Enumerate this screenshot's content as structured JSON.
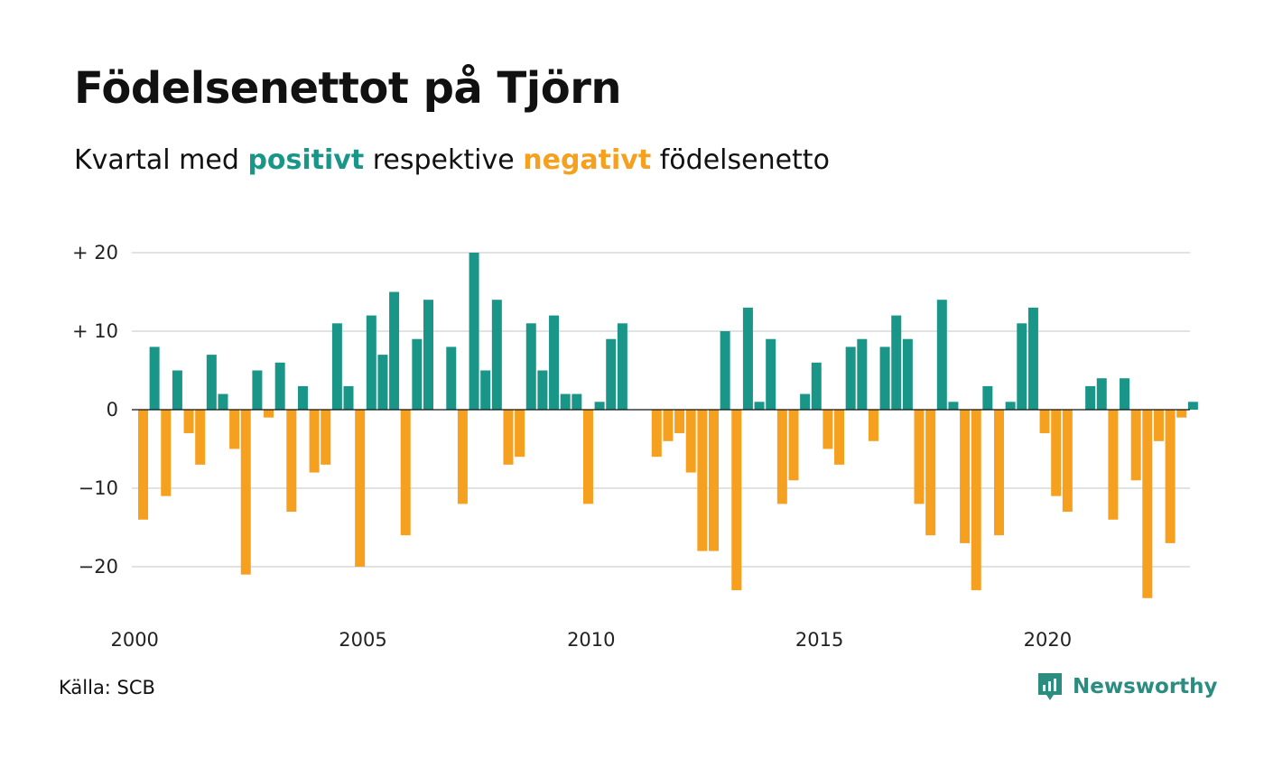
{
  "title": "Födelsenettot på Tjörn",
  "subtitle": {
    "prefix": "Kvartal med",
    "positive_word": "positivt",
    "middle": "respektive",
    "negative_word": "negativt",
    "suffix": "födelsenetto"
  },
  "colors": {
    "positive": "#1a9688",
    "negative": "#f5a01f",
    "grid": "#e2e2e2",
    "brand": "#2b8c80"
  },
  "source": "Källa: SCB",
  "brand": {
    "name": "Newsworthy",
    "icon": "newsworthy-logo-icon"
  },
  "chart_data": {
    "type": "bar",
    "start": "2000 Q1",
    "frequency": "quarterly",
    "ylim": [
      -25,
      20
    ],
    "yticks": [
      {
        "value": 20,
        "label": "+ 20"
      },
      {
        "value": 10,
        "label": "+ 10"
      },
      {
        "value": 0,
        "label": "0"
      },
      {
        "value": -10,
        "label": "−10"
      },
      {
        "value": -20,
        "label": "−20"
      }
    ],
    "xticks": [
      "2000",
      "2005",
      "2010",
      "2015",
      "2020"
    ],
    "grid": true,
    "legend": "none",
    "values": [
      -14,
      8,
      -11,
      5,
      -3,
      -7,
      7,
      2,
      -5,
      -21,
      5,
      -1,
      6,
      -13,
      3,
      -8,
      -7,
      11,
      3,
      -20,
      12,
      7,
      15,
      -16,
      9,
      14,
      0,
      8,
      -12,
      20,
      5,
      14,
      -7,
      -6,
      11,
      5,
      12,
      2,
      2,
      -12,
      1,
      9,
      11,
      0,
      0,
      -6,
      -4,
      -3,
      -8,
      -18,
      -18,
      10,
      -23,
      13,
      1,
      9,
      -12,
      -9,
      2,
      6,
      -5,
      -7,
      8,
      9,
      -4,
      8,
      12,
      9,
      -12,
      -16,
      14,
      1,
      -17,
      -23,
      3,
      -16,
      1,
      11,
      13,
      -3,
      -11,
      -13,
      0,
      3,
      4,
      -14,
      4,
      -9,
      -24,
      -4,
      -17,
      -1,
      1
    ]
  }
}
